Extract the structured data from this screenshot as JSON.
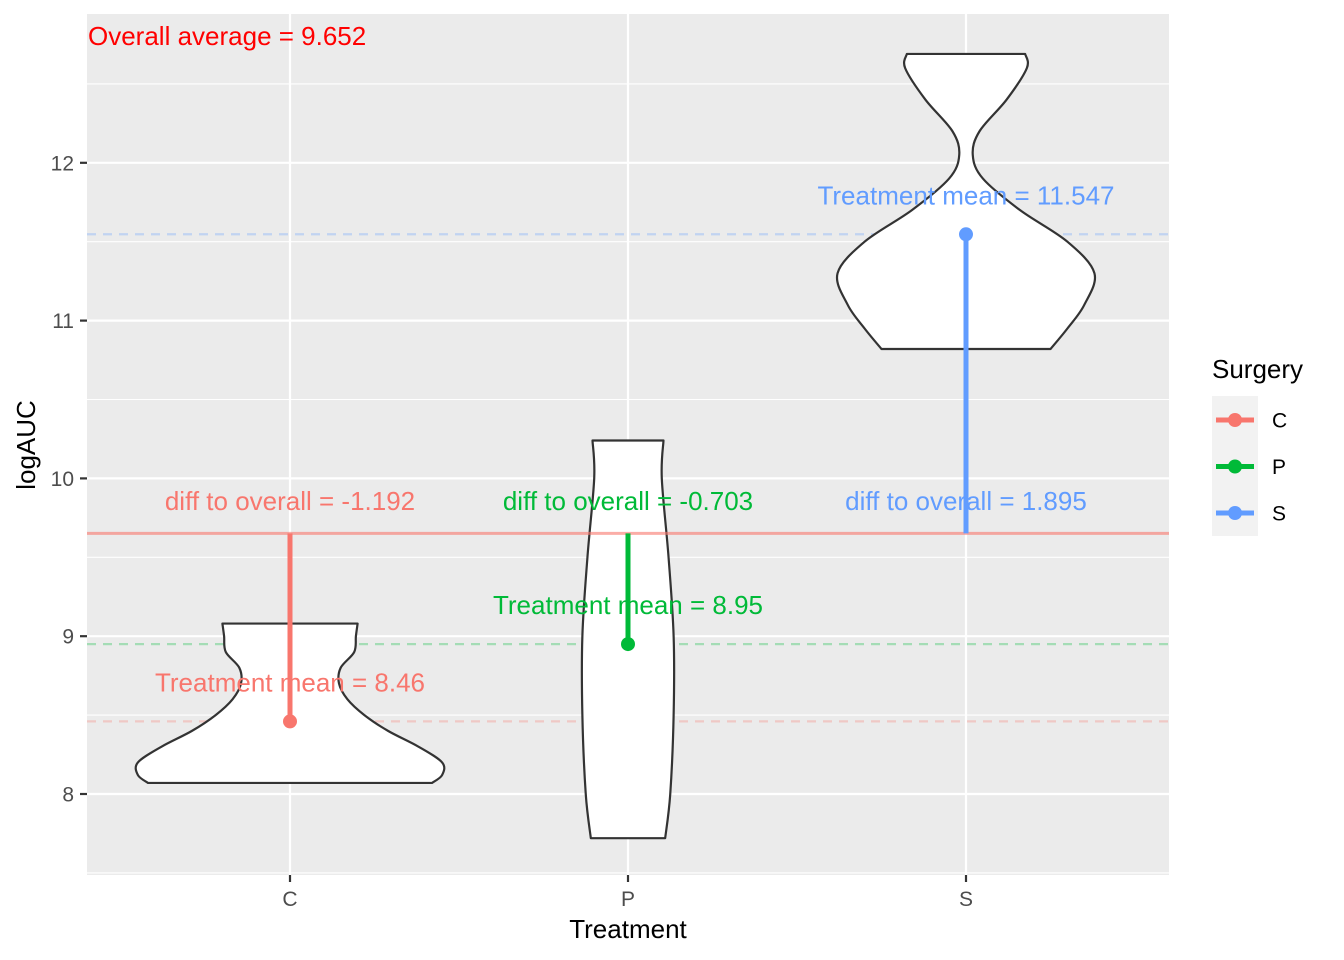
{
  "chart_data": {
    "type": "violin",
    "title": "",
    "xlabel": "Treatment",
    "ylabel": "logAUC",
    "categories": [
      "C",
      "P",
      "S"
    ],
    "ylim": [
      7.5,
      12.95
    ],
    "yticks": [
      8,
      9,
      10,
      11,
      12
    ],
    "grid": true,
    "overall_average": 9.652,
    "overall_label": "Overall average = 9.652",
    "overall_color": "#F8766D",
    "series": [
      {
        "name": "C",
        "color": "#F8766D",
        "mean": 8.46,
        "diff": -1.192,
        "mean_label": "Treatment mean = 8.46",
        "diff_label": "diff to overall = -1.192",
        "violin": {
          "y": [
            8.07,
            8.12,
            8.2,
            8.3,
            8.4,
            8.5,
            8.6,
            8.7,
            8.8,
            8.9,
            9.0,
            9.08
          ],
          "halfwidth": [
            0.42,
            0.45,
            0.45,
            0.38,
            0.29,
            0.22,
            0.17,
            0.145,
            0.15,
            0.19,
            0.195,
            0.2
          ]
        }
      },
      {
        "name": "P",
        "color": "#00BA38",
        "mean": 8.95,
        "diff": -0.703,
        "mean_label": "Treatment mean = 8.95",
        "diff_label": "diff to overall = -0.703",
        "violin": {
          "y": [
            7.72,
            8.0,
            8.5,
            9.0,
            9.5,
            10.0,
            10.24
          ],
          "halfwidth": [
            0.11,
            0.125,
            0.135,
            0.135,
            0.12,
            0.1,
            0.105
          ]
        }
      },
      {
        "name": "S",
        "color": "#619CFF",
        "mean": 11.547,
        "diff": 1.895,
        "mean_label": "Treatment mean = 11.547",
        "diff_label": "diff to overall = 1.895",
        "violin": {
          "y": [
            10.82,
            10.95,
            11.1,
            11.3,
            11.5,
            11.7,
            11.9,
            12.05,
            12.2,
            12.4,
            12.6,
            12.69
          ],
          "halfwidth": [
            0.25,
            0.3,
            0.35,
            0.38,
            0.3,
            0.16,
            0.05,
            0.02,
            0.04,
            0.12,
            0.18,
            0.175
          ]
        }
      }
    ],
    "legend": {
      "title": "Surgery",
      "placement": "right",
      "items": [
        "C",
        "P",
        "S"
      ]
    }
  }
}
